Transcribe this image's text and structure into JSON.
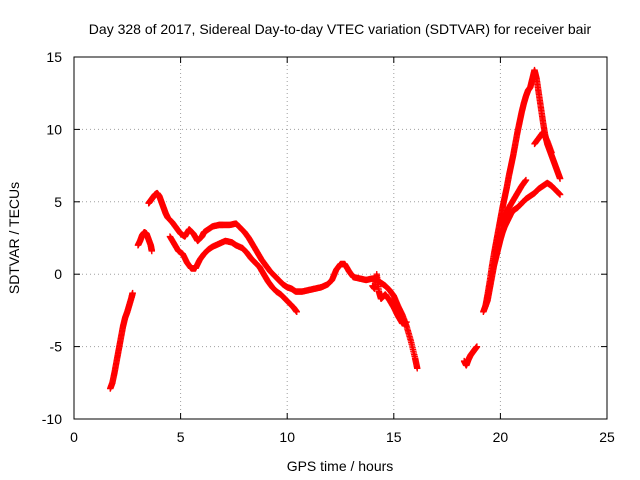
{
  "chart_data": {
    "type": "scatter",
    "title": "Day 328 of 2017, Sidereal Day-to-day VTEC variation (SDTVAR) for receiver bair",
    "xlabel": "GPS time / hours",
    "ylabel": "SDTVAR / TECUs",
    "xlim": [
      0,
      25
    ],
    "ylim": [
      -10,
      15
    ],
    "xticks": [
      0,
      5,
      10,
      15,
      20,
      25
    ],
    "xtick_labels": [
      "0",
      "5",
      "10",
      "15",
      "20",
      "25"
    ],
    "yticks": [
      -10,
      -5,
      0,
      5,
      10,
      15
    ],
    "ytick_labels": [
      "-10",
      "-5",
      "0",
      "5",
      "10",
      "15"
    ],
    "grid": true,
    "marker": "+",
    "series": [
      {
        "name": "track-1",
        "color": "#ff0000",
        "points": [
          [
            1.7,
            -7.9
          ],
          [
            1.8,
            -7.5
          ],
          [
            1.9,
            -6.8
          ],
          [
            2.0,
            -6.0
          ],
          [
            2.1,
            -5.2
          ],
          [
            2.2,
            -4.4
          ],
          [
            2.3,
            -3.6
          ],
          [
            2.4,
            -3.0
          ],
          [
            2.5,
            -2.6
          ],
          [
            2.6,
            -2.1
          ],
          [
            2.7,
            -1.6
          ],
          [
            2.75,
            -1.3
          ]
        ]
      },
      {
        "name": "track-2",
        "color": "#ff0000",
        "points": [
          [
            3.0,
            2.0
          ],
          [
            3.1,
            2.3
          ],
          [
            3.2,
            2.7
          ],
          [
            3.3,
            2.9
          ],
          [
            3.4,
            2.8
          ],
          [
            3.5,
            2.4
          ],
          [
            3.6,
            2.0
          ],
          [
            3.65,
            1.6
          ]
        ]
      },
      {
        "name": "track-3",
        "color": "#ff0000",
        "points": [
          [
            3.5,
            4.9
          ],
          [
            3.6,
            5.1
          ],
          [
            3.7,
            5.3
          ],
          [
            3.8,
            5.5
          ],
          [
            3.9,
            5.6
          ],
          [
            4.0,
            5.4
          ],
          [
            4.1,
            5.0
          ],
          [
            4.2,
            4.6
          ],
          [
            4.3,
            4.2
          ],
          [
            4.4,
            3.9
          ],
          [
            4.6,
            3.6
          ],
          [
            4.8,
            3.2
          ],
          [
            5.0,
            2.8
          ],
          [
            5.2,
            2.6
          ],
          [
            5.4,
            3.1
          ],
          [
            5.6,
            2.8
          ],
          [
            5.8,
            2.3
          ],
          [
            6.0,
            2.6
          ],
          [
            6.1,
            2.9
          ],
          [
            6.3,
            3.1
          ],
          [
            6.5,
            3.3
          ],
          [
            6.8,
            3.4
          ],
          [
            7.0,
            3.4
          ],
          [
            7.3,
            3.4
          ],
          [
            7.6,
            3.5
          ],
          [
            7.8,
            3.2
          ],
          [
            8.0,
            2.9
          ],
          [
            8.2,
            2.5
          ],
          [
            8.4,
            2.0
          ],
          [
            8.6,
            1.5
          ],
          [
            8.8,
            1.0
          ],
          [
            9.0,
            0.6
          ],
          [
            9.2,
            0.2
          ],
          [
            9.4,
            -0.1
          ],
          [
            9.6,
            -0.4
          ],
          [
            9.8,
            -0.7
          ],
          [
            10.0,
            -0.9
          ],
          [
            10.2,
            -1.0
          ],
          [
            10.4,
            -1.2
          ],
          [
            10.7,
            -1.2
          ],
          [
            11.0,
            -1.1
          ],
          [
            11.3,
            -1.0
          ],
          [
            11.6,
            -0.9
          ],
          [
            11.9,
            -0.7
          ],
          [
            12.1,
            -0.4
          ],
          [
            12.3,
            0.3
          ],
          [
            12.5,
            0.7
          ],
          [
            12.7,
            0.7
          ],
          [
            12.9,
            0.2
          ],
          [
            13.1,
            -0.2
          ],
          [
            13.4,
            -0.3
          ],
          [
            13.7,
            -0.4
          ],
          [
            14.0,
            -0.3
          ],
          [
            14.2,
            -0.4
          ],
          [
            14.4,
            -0.6
          ],
          [
            14.6,
            -0.8
          ],
          [
            14.8,
            -1.1
          ],
          [
            15.0,
            -1.5
          ],
          [
            15.2,
            -2.2
          ],
          [
            15.4,
            -2.8
          ],
          [
            15.6,
            -3.6
          ],
          [
            15.8,
            -4.6
          ],
          [
            16.0,
            -5.8
          ],
          [
            16.1,
            -6.5
          ]
        ]
      },
      {
        "name": "track-4",
        "color": "#ff0000",
        "points": [
          [
            4.5,
            2.6
          ],
          [
            4.7,
            2.1
          ],
          [
            4.9,
            1.6
          ],
          [
            5.1,
            1.4
          ],
          [
            5.3,
            0.8
          ],
          [
            5.5,
            0.4
          ],
          [
            5.7,
            0.4
          ],
          [
            5.9,
            1.0
          ],
          [
            6.1,
            1.4
          ],
          [
            6.3,
            1.7
          ],
          [
            6.5,
            1.9
          ],
          [
            6.8,
            2.1
          ],
          [
            7.1,
            2.3
          ],
          [
            7.4,
            2.2
          ],
          [
            7.6,
            2.0
          ],
          [
            7.9,
            1.8
          ],
          [
            8.1,
            1.5
          ],
          [
            8.3,
            1.1
          ],
          [
            8.5,
            0.8
          ],
          [
            8.7,
            0.5
          ],
          [
            8.9,
            0.0
          ],
          [
            9.1,
            -0.5
          ],
          [
            9.3,
            -0.9
          ],
          [
            9.5,
            -1.2
          ],
          [
            9.7,
            -1.4
          ],
          [
            9.9,
            -1.7
          ],
          [
            10.1,
            -2.0
          ],
          [
            10.3,
            -2.3
          ],
          [
            10.45,
            -2.6
          ]
        ]
      },
      {
        "name": "track-5",
        "color": "#ff0000",
        "points": [
          [
            14.0,
            -0.8
          ],
          [
            14.1,
            -1.0
          ],
          [
            14.2,
            0.0
          ],
          [
            14.3,
            -1.2
          ],
          [
            14.4,
            -1.7
          ],
          [
            14.6,
            -1.4
          ],
          [
            14.8,
            -1.8
          ],
          [
            15.0,
            -2.3
          ],
          [
            15.2,
            -2.9
          ],
          [
            15.4,
            -3.4
          ],
          [
            15.6,
            -3.3
          ]
        ]
      },
      {
        "name": "track-6",
        "color": "#ff0000",
        "points": [
          [
            18.3,
            -6.0
          ],
          [
            18.4,
            -6.3
          ],
          [
            18.5,
            -5.9
          ],
          [
            18.6,
            -5.6
          ],
          [
            18.7,
            -5.4
          ],
          [
            18.8,
            -5.2
          ],
          [
            18.9,
            -5.0
          ]
        ]
      },
      {
        "name": "track-7",
        "color": "#ff0000",
        "points": [
          [
            19.2,
            -2.6
          ],
          [
            19.3,
            -2.2
          ],
          [
            19.4,
            -1.4
          ],
          [
            19.5,
            -0.5
          ],
          [
            19.6,
            0.5
          ],
          [
            19.7,
            1.4
          ],
          [
            19.8,
            2.2
          ],
          [
            19.9,
            3.0
          ],
          [
            20.0,
            3.8
          ],
          [
            20.1,
            4.6
          ],
          [
            20.2,
            5.3
          ],
          [
            20.3,
            6.0
          ],
          [
            20.4,
            6.8
          ],
          [
            20.5,
            7.5
          ],
          [
            20.6,
            8.2
          ],
          [
            20.7,
            9.0
          ],
          [
            20.8,
            9.8
          ],
          [
            20.9,
            10.5
          ],
          [
            21.0,
            11.2
          ],
          [
            21.1,
            11.8
          ],
          [
            21.2,
            12.3
          ],
          [
            21.3,
            12.7
          ],
          [
            21.4,
            12.9
          ],
          [
            21.5,
            13.5
          ],
          [
            21.6,
            14.1
          ],
          [
            21.7,
            13.5
          ],
          [
            21.8,
            12.5
          ],
          [
            21.9,
            11.5
          ],
          [
            22.0,
            10.5
          ],
          [
            22.1,
            9.6
          ],
          [
            22.2,
            9.0
          ],
          [
            22.3,
            8.6
          ],
          [
            22.4,
            8.2
          ],
          [
            22.5,
            7.8
          ],
          [
            22.6,
            7.4
          ],
          [
            22.7,
            7.0
          ],
          [
            22.8,
            6.6
          ]
        ]
      },
      {
        "name": "track-8",
        "color": "#ff0000",
        "points": [
          [
            19.3,
            -2.2
          ],
          [
            19.4,
            -1.8
          ],
          [
            19.5,
            -1.0
          ],
          [
            19.6,
            -0.2
          ],
          [
            19.7,
            0.6
          ],
          [
            19.8,
            1.2
          ],
          [
            19.9,
            1.8
          ],
          [
            20.0,
            2.4
          ],
          [
            20.1,
            2.9
          ],
          [
            20.2,
            3.3
          ],
          [
            20.3,
            3.6
          ],
          [
            20.4,
            3.9
          ],
          [
            20.5,
            4.2
          ],
          [
            20.6,
            4.4
          ],
          [
            20.8,
            4.6
          ],
          [
            21.0,
            4.9
          ],
          [
            21.2,
            5.2
          ],
          [
            21.4,
            5.4
          ],
          [
            21.6,
            5.6
          ],
          [
            21.8,
            5.9
          ],
          [
            22.0,
            6.1
          ],
          [
            22.2,
            6.3
          ],
          [
            22.4,
            6.1
          ],
          [
            22.6,
            5.8
          ],
          [
            22.8,
            5.5
          ]
        ]
      },
      {
        "name": "track-9",
        "color": "#ff0000",
        "points": [
          [
            20.0,
            3.5
          ],
          [
            20.2,
            4.0
          ],
          [
            20.4,
            4.6
          ],
          [
            20.6,
            5.1
          ],
          [
            20.8,
            5.6
          ],
          [
            21.0,
            6.1
          ],
          [
            21.2,
            6.5
          ]
        ]
      },
      {
        "name": "track-10",
        "color": "#ff0000",
        "points": [
          [
            21.6,
            9.0
          ],
          [
            21.8,
            9.4
          ],
          [
            22.0,
            9.8
          ],
          [
            22.2,
            9.2
          ],
          [
            22.4,
            8.4
          ]
        ]
      }
    ]
  }
}
